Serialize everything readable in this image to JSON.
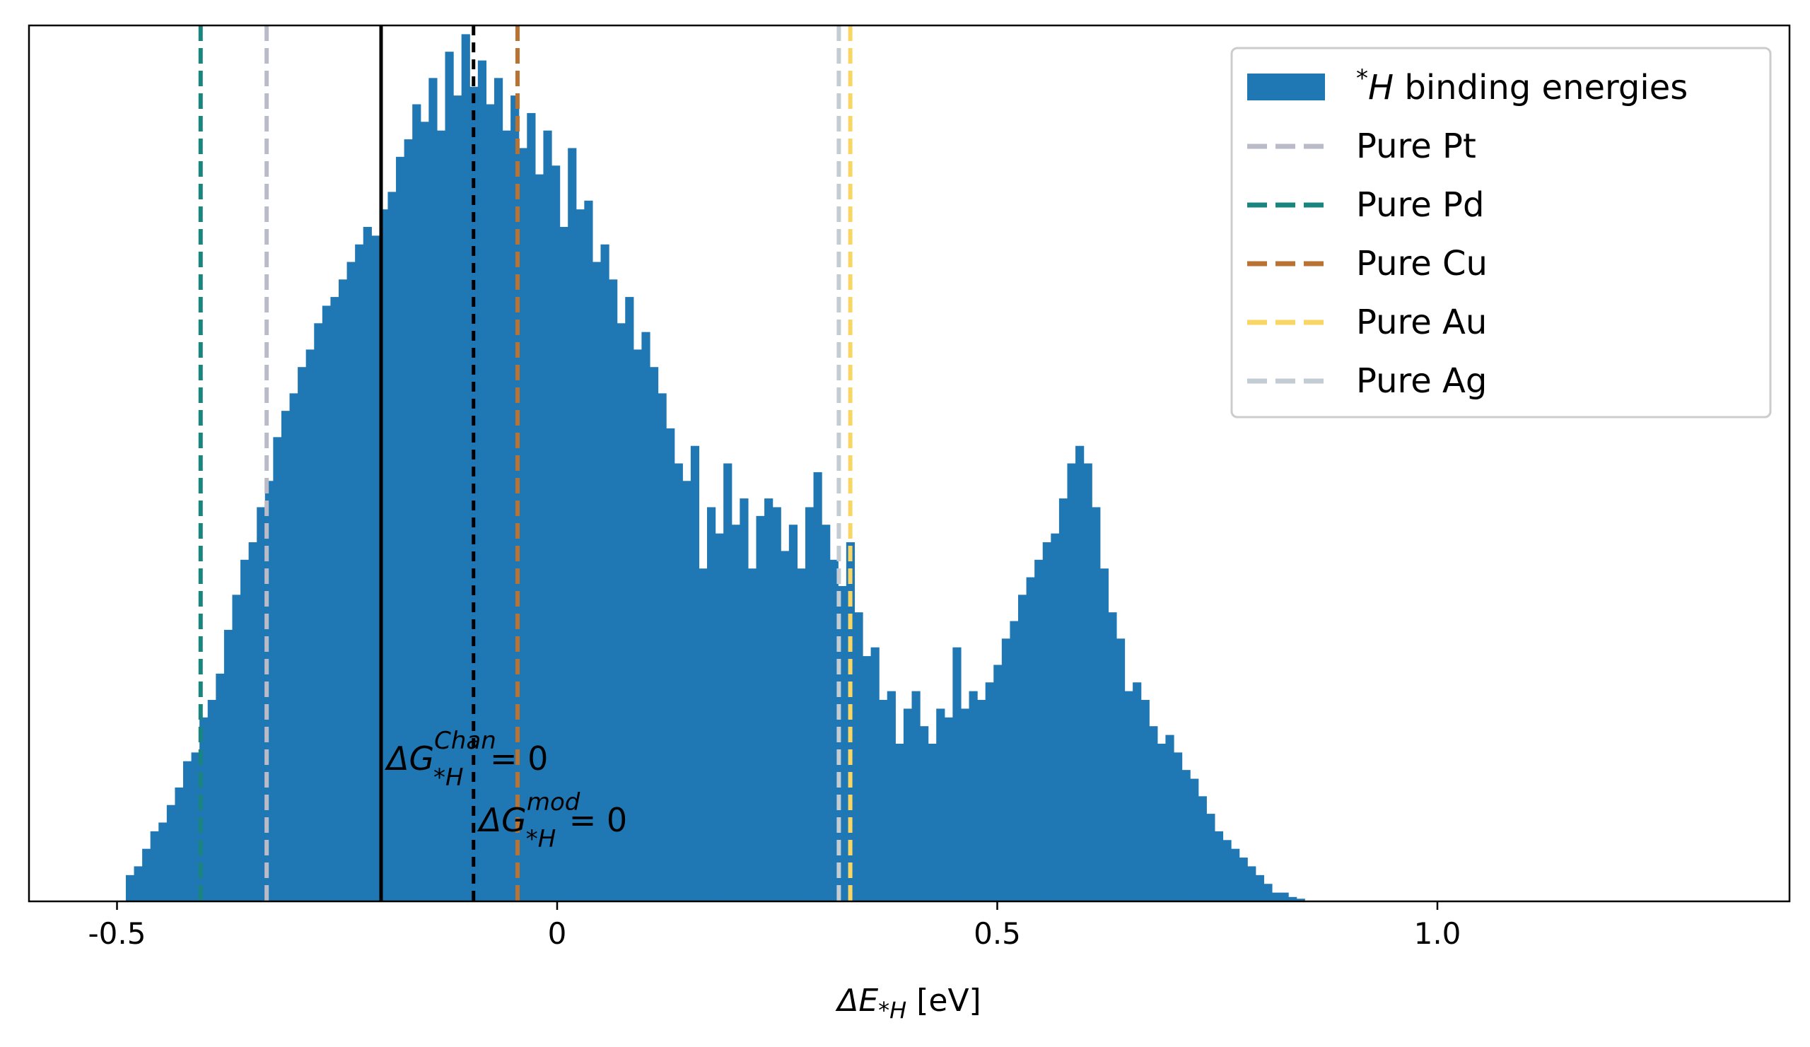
{
  "chart_data": {
    "type": "histogram",
    "xlabel": "ΔE*H [eV]",
    "xlabel_parts": {
      "delta": "ΔE",
      "sub": "*H",
      "unit": " [eV]"
    },
    "ylabel": "",
    "xlim": [
      -0.6,
      1.4
    ],
    "ylim": [
      0,
      100
    ],
    "x_ticks": [
      {
        "value": -0.5,
        "label": "-0.5"
      },
      {
        "value": 0,
        "label": "0"
      },
      {
        "value": 0.5,
        "label": "0.5"
      },
      {
        "value": 1.0,
        "label": "1.0"
      }
    ],
    "y_ticks_visible": false,
    "grid": false,
    "legend_position": "top-right",
    "histogram": {
      "name": "*H binding energies",
      "name_parts": {
        "sup": "*",
        "italic": "H",
        "rest": " binding energies"
      },
      "color": "#1f77b4",
      "bin_start": -0.49,
      "bin_width": 0.0093,
      "counts": [
        3,
        4,
        6,
        8,
        9,
        11,
        13,
        16,
        17,
        21,
        23,
        26,
        31,
        35,
        39,
        41,
        45,
        48,
        53,
        56,
        58,
        61,
        63,
        66,
        68,
        69,
        71,
        73,
        75,
        77,
        76,
        79,
        81,
        85,
        87,
        91,
        89,
        94,
        88,
        97,
        92,
        99,
        93,
        96,
        91,
        94,
        88,
        92,
        86,
        90,
        83,
        88,
        84,
        77,
        86,
        79,
        80,
        73,
        75,
        71,
        66,
        69,
        63,
        65,
        61,
        58,
        54,
        50,
        48,
        52,
        38,
        45,
        42,
        50,
        43,
        46,
        38,
        44,
        46,
        45,
        40,
        43,
        38,
        45,
        49,
        43,
        39,
        36,
        41,
        33,
        28,
        29,
        23,
        24,
        18,
        22,
        24,
        20,
        18,
        22,
        21,
        29,
        22,
        24,
        23,
        25,
        27,
        30,
        32,
        35,
        37,
        39,
        41,
        42,
        46,
        50,
        52,
        50,
        45,
        38,
        33,
        30,
        24,
        25,
        23,
        20,
        18,
        19,
        17,
        15,
        14,
        12,
        10,
        8,
        7,
        6,
        5,
        4,
        3,
        2,
        1,
        1,
        0.5,
        0.3
      ]
    },
    "reference_lines": [
      {
        "name": "Pure Pt",
        "x": -0.33,
        "color": "#b9bbc9",
        "style": "dashed"
      },
      {
        "name": "Pure Pd",
        "x": -0.405,
        "color": "#1a8580",
        "style": "dashed"
      },
      {
        "name": "Pure Cu",
        "x": -0.045,
        "color": "#b87333",
        "style": "dashed"
      },
      {
        "name": "Pure Au",
        "x": 0.333,
        "color": "#f9d663",
        "style": "dashed"
      },
      {
        "name": "Pure Ag",
        "x": 0.32,
        "color": "#c3cbd3",
        "style": "dashed"
      }
    ],
    "annotation_lines": [
      {
        "id": "chan",
        "x": -0.2,
        "style": "solid",
        "color": "#000000",
        "label_main": "ΔG",
        "label_sup": "Chan",
        "label_sub": "*H",
        "label_rest": " = 0",
        "label_y": 15
      },
      {
        "id": "mod",
        "x": -0.095,
        "style": "dashed",
        "color": "#000000",
        "label_main": "ΔG",
        "label_sup": "mod",
        "label_sub": "*H",
        "label_rest": " = 0",
        "label_y": 8
      }
    ]
  }
}
